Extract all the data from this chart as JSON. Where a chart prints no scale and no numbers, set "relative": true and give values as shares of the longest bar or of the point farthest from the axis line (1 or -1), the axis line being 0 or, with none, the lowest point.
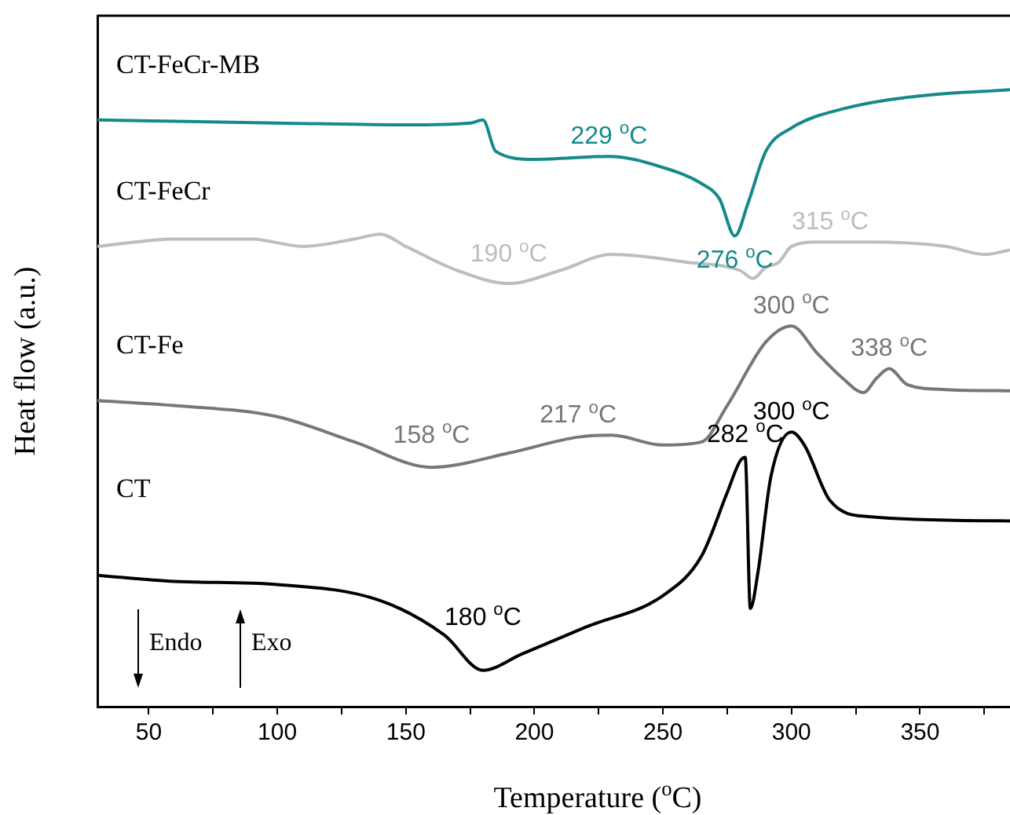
{
  "chart_data": {
    "type": "line",
    "relative": true,
    "xlabel": "Temperature ($^{o}$C)",
    "ylabel": "Heat flow (a.u.)",
    "xlim": [
      30,
      385
    ],
    "xticks": [
      50,
      {
        "value": 75,
        "label": null
      },
      100,
      {
        "value": 125,
        "label": null
      },
      150,
      {
        "value": 175,
        "label": null
      },
      200,
      {
        "value": 225,
        "label": null
      },
      250,
      {
        "value": 275,
        "label": null
      },
      300,
      {
        "value": 325,
        "label": null
      },
      350,
      {
        "value": 375,
        "label": null
      }
    ],
    "legend": false,
    "grid": false,
    "marker": "none",
    "line_style": "solid",
    "series": [
      {
        "name": "CT",
        "color": "#000000",
        "x": [
          30,
          60,
          100,
          140,
          165,
          180,
          195,
          220,
          250,
          265,
          275,
          280,
          282,
          284,
          287,
          292,
          300,
          305,
          315,
          330,
          385
        ],
        "values": [
          0.213,
          0.203,
          0.198,
          0.172,
          0.116,
          0.059,
          0.085,
          0.129,
          0.18,
          0.244,
          0.347,
          0.398,
          0.404,
          0.159,
          0.219,
          0.373,
          0.445,
          0.424,
          0.334,
          0.308,
          0.301
        ]
      },
      {
        "name": "CT-Fe",
        "color": "#777777",
        "x": [
          30,
          60,
          100,
          130,
          160,
          190,
          217,
          230,
          250,
          265,
          275,
          290,
          300,
          310,
          320,
          328,
          333,
          338,
          345,
          360,
          385
        ],
        "values": [
          0.496,
          0.488,
          0.47,
          0.429,
          0.388,
          0.411,
          0.437,
          0.44,
          0.424,
          0.429,
          0.488,
          0.591,
          0.617,
          0.573,
          0.532,
          0.509,
          0.532,
          0.548,
          0.522,
          0.514,
          0.512
        ]
      },
      {
        "name": "CT-FeCr",
        "color": "#bdbdbd",
        "x": [
          30,
          60,
          90,
          110,
          130,
          140,
          150,
          170,
          190,
          210,
          230,
          260,
          280,
          285,
          290,
          295,
          300,
          310,
          330,
          360,
          375,
          385
        ],
        "values": [
          0.746,
          0.758,
          0.758,
          0.746,
          0.758,
          0.766,
          0.746,
          0.707,
          0.686,
          0.707,
          0.733,
          0.72,
          0.707,
          0.694,
          0.712,
          0.72,
          0.746,
          0.753,
          0.753,
          0.746,
          0.733,
          0.74
        ]
      },
      {
        "name": "CT-FeCr-MB",
        "color": "#148a8a",
        "x": [
          30,
          100,
          150,
          175,
          180,
          185,
          200,
          229,
          250,
          265,
          272,
          278,
          283,
          290,
          300,
          320,
          350,
          385
        ],
        "values": [
          0.951,
          0.946,
          0.943,
          0.946,
          0.951,
          0.9,
          0.887,
          0.892,
          0.874,
          0.848,
          0.823,
          0.763,
          0.815,
          0.9,
          0.938,
          0.969,
          0.99,
          1.0
        ]
      }
    ],
    "annotations": [
      {
        "text": "229 $^{o}$C",
        "x": 229,
        "y": 0.892
      },
      {
        "text": "276 $^{o}$C",
        "x": 278,
        "y": 0.763
      },
      {
        "text": "190 $^{o}$C",
        "x": 190,
        "y": 0.686
      },
      {
        "text": "315 $^{o}$C",
        "x": 315,
        "y": 0.753
      },
      {
        "text": "158 $^{o}$C",
        "x": 160,
        "y": 0.388
      },
      {
        "text": "217 $^{o}$C",
        "x": 217,
        "y": 0.437
      },
      {
        "text": "300 $^{o}$C",
        "x": 300,
        "y": 0.617
      },
      {
        "text": "338 $^{o}$C",
        "x": 338,
        "y": 0.548
      },
      {
        "text": "282 $^{o}$C",
        "x": 282,
        "y": 0.404
      },
      {
        "text": "300 $^{o}$C",
        "x": 300,
        "y": 0.445
      },
      {
        "text": "180 $^{o}$C",
        "x": 180,
        "y": 0.059
      },
      "Endo",
      "Exo"
    ]
  }
}
